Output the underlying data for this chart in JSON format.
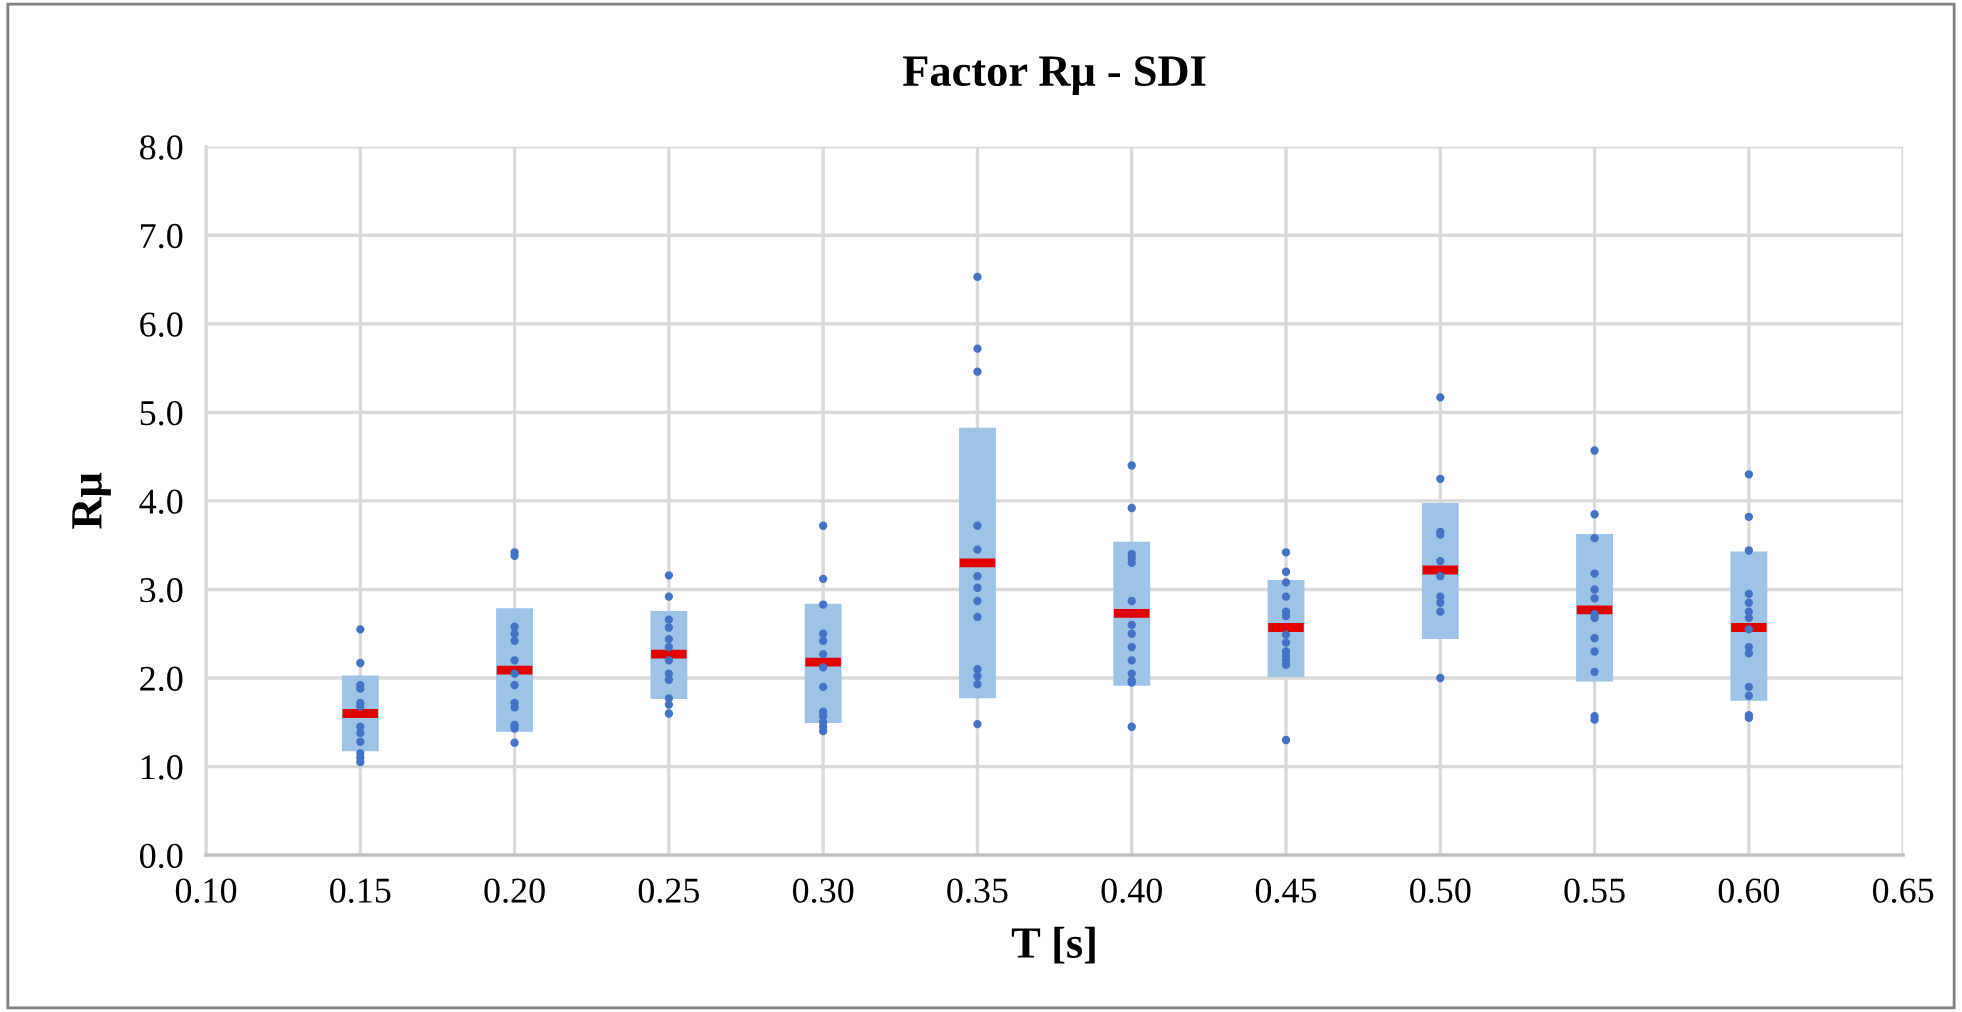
{
  "chart_data": {
    "type": "box",
    "title": "Factor Rμ - SDI",
    "xlabel": "T [s]",
    "ylabel": "Rμ",
    "xlim": [
      0.1,
      0.65
    ],
    "xticks": [
      {
        "value": 0.1,
        "label": "0.10"
      },
      {
        "value": 0.15,
        "label": "0.15"
      },
      {
        "value": 0.2,
        "label": "0.20"
      },
      {
        "value": 0.25,
        "label": "0.25"
      },
      {
        "value": 0.3,
        "label": "0.30"
      },
      {
        "value": 0.35,
        "label": "0.35"
      },
      {
        "value": 0.4,
        "label": "0.40"
      },
      {
        "value": 0.45,
        "label": "0.45"
      },
      {
        "value": 0.5,
        "label": "0.50"
      },
      {
        "value": 0.55,
        "label": "0.55"
      },
      {
        "value": 0.6,
        "label": "0.60"
      },
      {
        "value": 0.65,
        "label": "0.65"
      }
    ],
    "ylim": [
      0,
      8
    ],
    "yticks": [
      {
        "value": 0,
        "label": "0.0"
      },
      {
        "value": 1,
        "label": "1.0"
      },
      {
        "value": 2,
        "label": "2.0"
      },
      {
        "value": 3,
        "label": "3.0"
      },
      {
        "value": 4,
        "label": "4.0"
      },
      {
        "value": 5,
        "label": "5.0"
      },
      {
        "value": 6,
        "label": "6.0"
      },
      {
        "value": 7,
        "label": "7.0"
      },
      {
        "value": 8,
        "label": "8.0"
      }
    ],
    "grid": true,
    "series": [
      {
        "type": "box",
        "color": "#9dc3e6",
        "x": [
          0.15,
          0.2,
          0.25,
          0.3,
          0.35,
          0.4,
          0.45,
          0.5,
          0.55,
          0.6
        ],
        "boxes": [
          {
            "low": 1.18,
            "q1": 1.18,
            "median": 1.6,
            "q3": 2.02,
            "high": 2.02
          },
          {
            "low": 1.4,
            "q1": 1.4,
            "median": 2.09,
            "q3": 2.78,
            "high": 2.78
          },
          {
            "low": 1.77,
            "q1": 1.77,
            "median": 2.27,
            "q3": 2.75,
            "high": 2.75
          },
          {
            "low": 1.5,
            "q1": 1.5,
            "median": 2.18,
            "q3": 2.83,
            "high": 2.83
          },
          {
            "low": 1.78,
            "q1": 1.78,
            "median": 3.3,
            "q3": 4.82,
            "high": 4.82
          },
          {
            "low": 1.92,
            "q1": 1.92,
            "median": 2.73,
            "q3": 3.53,
            "high": 3.53
          },
          {
            "low": 2.02,
            "q1": 2.02,
            "median": 2.57,
            "q3": 3.1,
            "high": 3.1
          },
          {
            "low": 2.45,
            "q1": 2.45,
            "median": 3.22,
            "q3": 3.97,
            "high": 3.97
          },
          {
            "low": 1.97,
            "q1": 1.97,
            "median": 2.77,
            "q3": 3.62,
            "high": 3.62
          },
          {
            "low": 1.75,
            "q1": 1.75,
            "median": 2.57,
            "q3": 3.42,
            "high": 3.42
          }
        ]
      },
      {
        "type": "scatter",
        "color": "#4472c4",
        "marker": "circle",
        "x": [
          0.15,
          0.15,
          0.15,
          0.15,
          0.15,
          0.15,
          0.15,
          0.15,
          0.15,
          0.15,
          0.15,
          0.15,
          0.2,
          0.2,
          0.2,
          0.2,
          0.2,
          0.2,
          0.2,
          0.2,
          0.2,
          0.2,
          0.2,
          0.2,
          0.2,
          0.25,
          0.25,
          0.25,
          0.25,
          0.25,
          0.25,
          0.25,
          0.25,
          0.25,
          0.25,
          0.25,
          0.25,
          0.3,
          0.3,
          0.3,
          0.3,
          0.3,
          0.3,
          0.3,
          0.3,
          0.3,
          0.3,
          0.3,
          0.3,
          0.3,
          0.35,
          0.35,
          0.35,
          0.35,
          0.35,
          0.35,
          0.35,
          0.35,
          0.35,
          0.35,
          0.35,
          0.35,
          0.35,
          0.4,
          0.4,
          0.4,
          0.4,
          0.4,
          0.4,
          0.4,
          0.4,
          0.4,
          0.4,
          0.4,
          0.4,
          0.4,
          0.4,
          0.45,
          0.45,
          0.45,
          0.45,
          0.45,
          0.45,
          0.45,
          0.45,
          0.45,
          0.45,
          0.45,
          0.45,
          0.45,
          0.5,
          0.5,
          0.5,
          0.5,
          0.5,
          0.5,
          0.5,
          0.5,
          0.5,
          0.5,
          0.55,
          0.55,
          0.55,
          0.55,
          0.55,
          0.55,
          0.55,
          0.55,
          0.55,
          0.55,
          0.55,
          0.55,
          0.55,
          0.6,
          0.6,
          0.6,
          0.6,
          0.6,
          0.6,
          0.6,
          0.6,
          0.6,
          0.6,
          0.6,
          0.6,
          0.6,
          0.6
        ],
        "values": [
          2.55,
          2.17,
          1.92,
          1.88,
          1.72,
          1.68,
          1.45,
          1.38,
          1.28,
          1.15,
          1.1,
          1.05,
          3.42,
          3.38,
          2.58,
          2.5,
          2.42,
          2.2,
          2.05,
          1.92,
          1.72,
          1.67,
          1.47,
          1.43,
          1.27,
          3.16,
          2.92,
          2.66,
          2.57,
          2.44,
          2.35,
          2.2,
          2.05,
          1.98,
          1.77,
          1.7,
          1.6,
          3.72,
          3.12,
          2.83,
          2.5,
          2.42,
          2.27,
          2.12,
          1.9,
          1.62,
          1.57,
          1.5,
          1.45,
          1.4,
          6.53,
          5.72,
          5.46,
          3.72,
          3.45,
          3.15,
          3.02,
          2.87,
          2.69,
          2.1,
          2.02,
          1.93,
          1.48,
          4.4,
          3.92,
          3.4,
          3.35,
          3.3,
          2.87,
          2.6,
          2.5,
          2.35,
          2.2,
          2.05,
          1.97,
          1.95,
          1.45,
          3.42,
          3.2,
          3.08,
          2.92,
          2.75,
          2.7,
          2.49,
          2.4,
          2.3,
          2.25,
          2.2,
          2.15,
          1.3,
          5.17,
          4.25,
          3.65,
          3.62,
          3.32,
          3.15,
          2.92,
          2.85,
          2.75,
          2.0,
          4.57,
          3.85,
          3.58,
          3.18,
          3.0,
          2.9,
          2.72,
          2.68,
          2.45,
          2.3,
          2.07,
          1.57,
          1.53,
          4.3,
          3.82,
          3.44,
          2.95,
          2.85,
          2.75,
          2.68,
          2.55,
          2.35,
          2.28,
          1.9,
          1.8,
          1.58,
          1.55
        ]
      }
    ]
  }
}
